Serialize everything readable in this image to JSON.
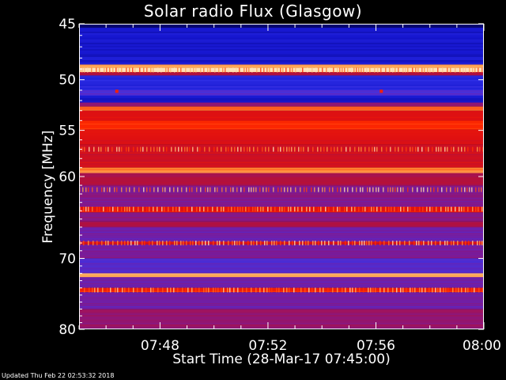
{
  "chart_data": {
    "type": "heatmap",
    "title": "Solar radio Flux (Glasgow)",
    "xlabel": "Start Time (28-Mar-17 07:45:00)",
    "ylabel": "Frequency [MHz]",
    "updated": "Updated Thu Feb 22 02:53:32 2018",
    "x_range_minutes": [
      0,
      15
    ],
    "x_ticks": [
      {
        "label": "07:48",
        "minute": 3
      },
      {
        "label": "07:52",
        "minute": 7
      },
      {
        "label": "07:56",
        "minute": 11
      },
      {
        "label": "08:00",
        "minute": 15
      }
    ],
    "y_range_mhz": [
      45,
      80
    ],
    "y_scale": "log",
    "y_ticks": [
      45,
      50,
      55,
      60,
      70,
      80
    ],
    "colormap": [
      "#000030",
      "#1010c8",
      "#3838f0",
      "#7a1a9a",
      "#b01040",
      "#e01010",
      "#ff2a00",
      "#ff9a40",
      "#ffe8c0"
    ],
    "bands": [
      {
        "from": 45.0,
        "to": 45.3,
        "level": 0.05
      },
      {
        "from": 45.3,
        "to": 48.6,
        "level": 0.15
      },
      {
        "from": 48.6,
        "to": 48.9,
        "level": 0.9
      },
      {
        "from": 48.9,
        "to": 49.3,
        "level": 1.0
      },
      {
        "from": 49.3,
        "to": 49.6,
        "level": 0.5
      },
      {
        "from": 49.6,
        "to": 51.0,
        "level": 0.2
      },
      {
        "from": 51.0,
        "to": 51.5,
        "level": 0.3
      },
      {
        "from": 51.5,
        "to": 52.2,
        "level": 0.15
      },
      {
        "from": 52.2,
        "to": 52.6,
        "level": 0.45
      },
      {
        "from": 52.6,
        "to": 53.0,
        "level": 0.8
      },
      {
        "from": 53.0,
        "to": 54.0,
        "level": 0.62
      },
      {
        "from": 54.0,
        "to": 54.9,
        "level": 0.75
      },
      {
        "from": 54.9,
        "to": 56.5,
        "level": 0.62
      },
      {
        "from": 56.5,
        "to": 59.0,
        "level": 0.58
      },
      {
        "from": 59.0,
        "to": 59.6,
        "level": 0.85
      },
      {
        "from": 59.6,
        "to": 61.0,
        "level": 0.5
      },
      {
        "from": 61.0,
        "to": 63.5,
        "level": 0.4
      },
      {
        "from": 63.5,
        "to": 64.2,
        "level": 0.65
      },
      {
        "from": 64.2,
        "to": 65.3,
        "level": 0.42
      },
      {
        "from": 65.3,
        "to": 66.0,
        "level": 0.5
      },
      {
        "from": 66.0,
        "to": 67.8,
        "level": 0.35
      },
      {
        "from": 67.8,
        "to": 68.2,
        "level": 0.62
      },
      {
        "from": 68.2,
        "to": 70.0,
        "level": 0.38
      },
      {
        "from": 70.0,
        "to": 72.0,
        "level": 0.3
      },
      {
        "from": 72.0,
        "to": 72.5,
        "level": 0.9
      },
      {
        "from": 72.5,
        "to": 74.0,
        "level": 0.34
      },
      {
        "from": 74.0,
        "to": 74.6,
        "level": 0.7
      },
      {
        "from": 74.6,
        "to": 77.0,
        "level": 0.36
      },
      {
        "from": 77.0,
        "to": 80.0,
        "level": 0.44
      }
    ],
    "spots": [
      {
        "minute": 1.4,
        "mhz": 51.1,
        "level": 0.7
      },
      {
        "minute": 11.2,
        "mhz": 51.1,
        "level": 0.7
      }
    ],
    "grid": false,
    "legend": "none"
  }
}
